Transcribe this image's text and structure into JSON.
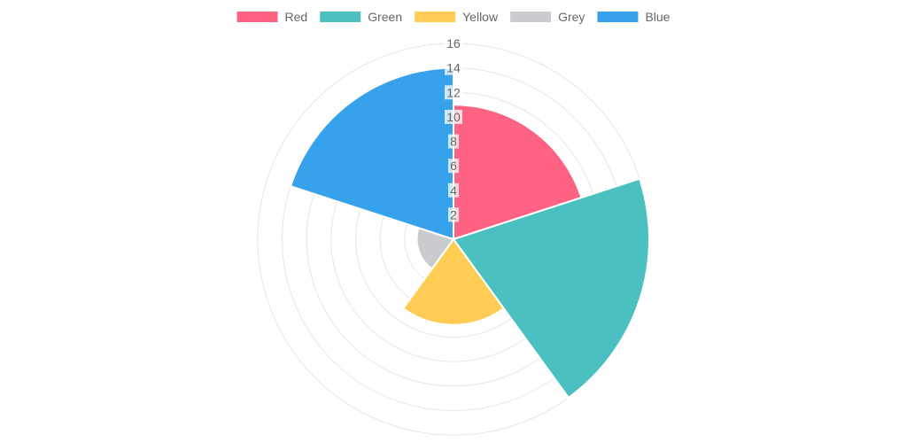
{
  "chart_data": {
    "type": "polarArea",
    "categories": [
      "Red",
      "Green",
      "Yellow",
      "Grey",
      "Blue"
    ],
    "values": [
      11,
      16,
      7,
      3,
      14
    ],
    "colors": [
      "#ff6384",
      "#4bc0c0",
      "#ffcd56",
      "#c9cbcf",
      "#36a2eb"
    ],
    "r_range": [
      0,
      16
    ],
    "r_ticks": [
      2,
      4,
      6,
      8,
      10,
      12,
      14,
      16
    ],
    "r_tick_labels": [
      "2",
      "4",
      "6",
      "8",
      "10",
      "12",
      "14",
      "16"
    ],
    "grid": true,
    "legend_position": "top"
  }
}
